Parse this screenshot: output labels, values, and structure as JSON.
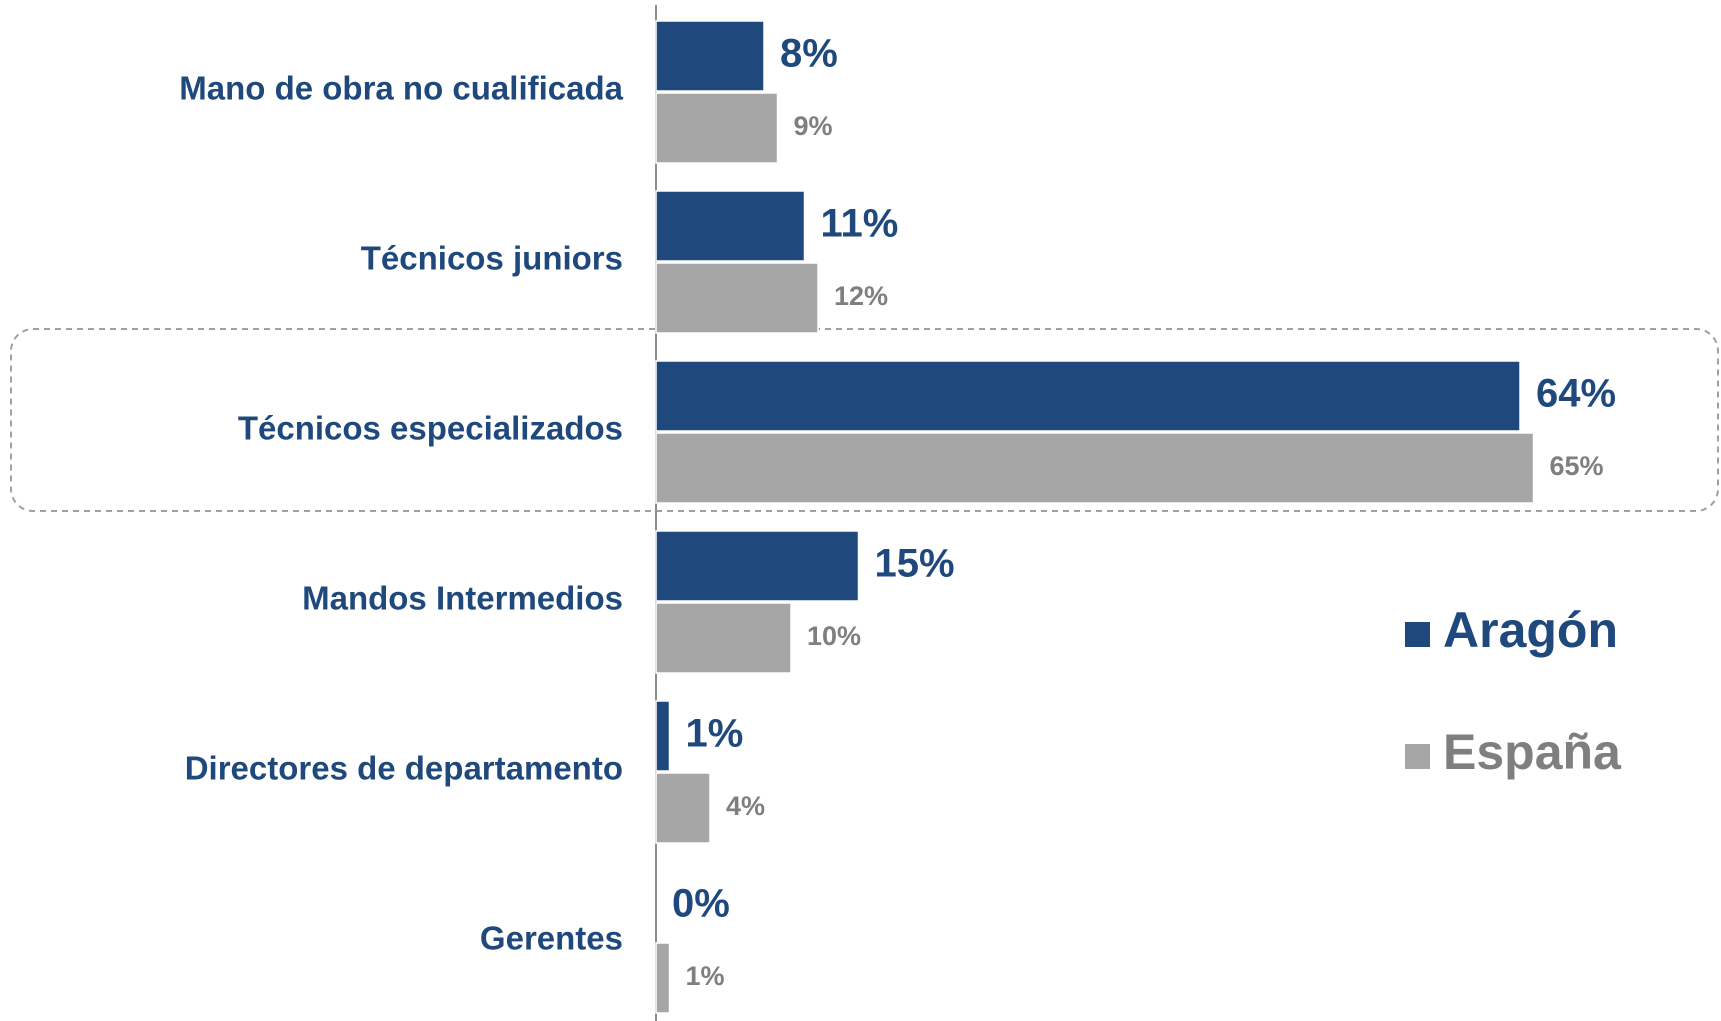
{
  "chart_data": {
    "type": "bar",
    "orientation": "horizontal",
    "categories": [
      "Mano de obra no cualificada",
      "Técnicos juniors",
      "Técnicos especializados",
      "Mandos Intermedios",
      "Directores de departamento",
      "Gerentes"
    ],
    "series": [
      {
        "name": "Aragón",
        "color": "#1f497d",
        "values": [
          8,
          11,
          64,
          15,
          1,
          0
        ],
        "value_labels": [
          "8%",
          "11%",
          "64%",
          "15%",
          "1%",
          "0%"
        ]
      },
      {
        "name": "España",
        "color": "#a6a6a6",
        "values": [
          9,
          12,
          65,
          10,
          4,
          1
        ],
        "value_labels": [
          "9%",
          "12%",
          "65%",
          "10%",
          "4%",
          "1%"
        ]
      }
    ],
    "legend": "right"
  }
}
